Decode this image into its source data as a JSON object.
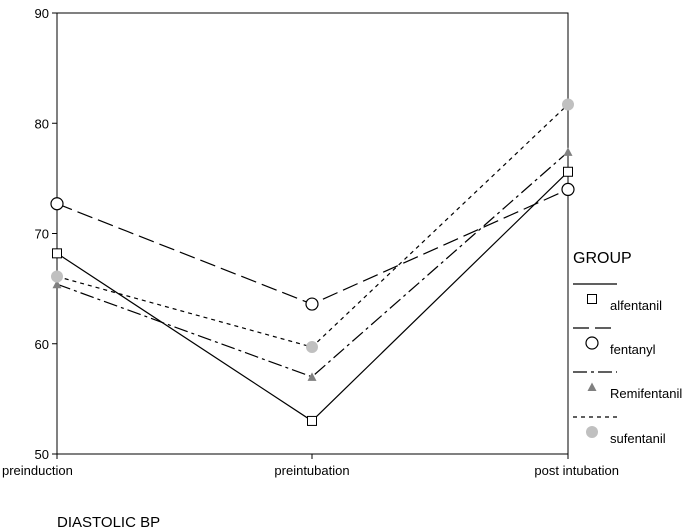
{
  "chart_data": {
    "type": "line",
    "categories": [
      "preinduction",
      "preintubation",
      "post intubation"
    ],
    "xlabel": "DIASTOLIC BP",
    "ylabel": "",
    "ylim": [
      50,
      90
    ],
    "yticks": [
      50,
      60,
      70,
      80,
      90
    ],
    "grid": false,
    "legend": {
      "title": "GROUP",
      "placement": "right"
    },
    "series": [
      {
        "name": "alfentanil",
        "values": [
          68.2,
          53.0,
          75.6
        ],
        "color": "#000000",
        "dash": "solid",
        "marker": "square"
      },
      {
        "name": "fentanyl",
        "values": [
          72.7,
          63.6,
          74.0
        ],
        "color": "#000000",
        "dash": "long-dash",
        "marker": "circle"
      },
      {
        "name": "Remifentanil",
        "values": [
          65.4,
          57.0,
          77.4
        ],
        "color": "#000000",
        "dash": "dash-dot",
        "marker": "triangle",
        "marker_color": "#808080"
      },
      {
        "name": "sufentanil",
        "values": [
          66.1,
          59.7,
          81.7
        ],
        "color": "#000000",
        "dash": "short-dash",
        "marker": "filled-circle",
        "marker_color": "#c0c0c0"
      }
    ]
  }
}
